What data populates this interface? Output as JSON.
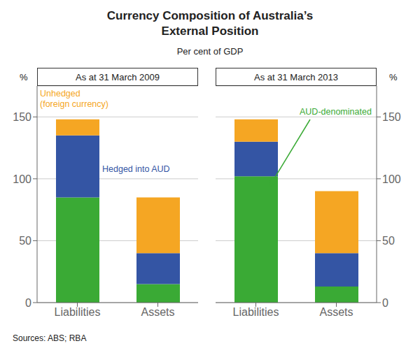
{
  "title": "Currency Composition of Australia’s\nExternal Position",
  "subtitle": "Per cent of GDP",
  "source": "Sources: ABS; RBA",
  "chart_data": [
    {
      "type": "bar",
      "title": "As at 31 March 2009",
      "stacked": true,
      "grid": true,
      "ylabel": "%",
      "categories": [
        "Liabilities",
        "Assets"
      ],
      "series": [
        {
          "color": "#3aaa35",
          "values": [
            85,
            15
          ]
        },
        {
          "color": "#3455a4",
          "values": [
            50,
            25
          ]
        },
        {
          "color": "#f5a623",
          "values": [
            13,
            45
          ]
        }
      ],
      "ylim": [
        0,
        175
      ],
      "yticks": [
        0,
        50,
        100,
        150
      ],
      "annotations": [
        {
          "text": "Unhedged\n(foreign currency)",
          "color": "#f5a623"
        },
        {
          "text": "Hedged into AUD",
          "color": "#3455a4"
        }
      ]
    },
    {
      "type": "bar",
      "title": "As at 31 March 2013",
      "stacked": true,
      "grid": true,
      "ylabel": "%",
      "categories": [
        "Liabilities",
        "Assets"
      ],
      "series": [
        {
          "color": "#3aaa35",
          "values": [
            102,
            13
          ]
        },
        {
          "color": "#3455a4",
          "values": [
            28,
            27
          ]
        },
        {
          "color": "#f5a623",
          "values": [
            18,
            50
          ]
        }
      ],
      "ylim": [
        0,
        175
      ],
      "yticks": [
        0,
        50,
        100,
        150
      ],
      "annotations": [
        {
          "text": "AUD-denominated",
          "color": "#3aaa35"
        }
      ]
    }
  ]
}
